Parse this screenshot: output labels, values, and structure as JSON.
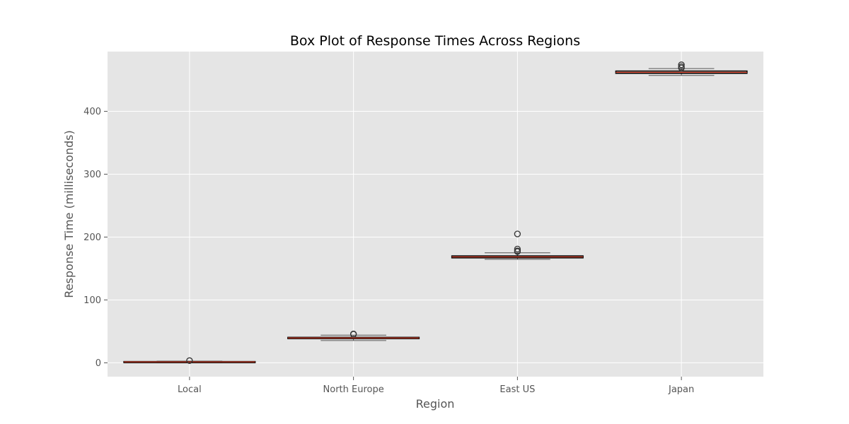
{
  "chart_data": {
    "type": "box",
    "title": "Box Plot of Response Times Across Regions",
    "xlabel": "Region",
    "ylabel": "Response Time (milliseconds)",
    "ylim": [
      -22,
      495
    ],
    "yticks": [
      0,
      100,
      200,
      300,
      400
    ],
    "grid": true,
    "categories": [
      "Local",
      "North Europe",
      "East US",
      "Japan"
    ],
    "boxes": [
      {
        "category": "Local",
        "whislo": 0.4,
        "q1": 1.0,
        "median": 1.5,
        "q3": 2.0,
        "whishi": 2.6,
        "fliers": [
          3.5
        ]
      },
      {
        "category": "North Europe",
        "whislo": 35.5,
        "q1": 38.5,
        "median": 39.5,
        "q3": 40.5,
        "whishi": 44.0,
        "fliers": [
          46.0,
          45.5
        ]
      },
      {
        "category": "East US",
        "whislo": 164.5,
        "q1": 167.0,
        "median": 168.5,
        "q3": 170.0,
        "whishi": 175.0,
        "fliers": [
          205.0,
          181.0,
          178.0,
          177.0
        ]
      },
      {
        "category": "Japan",
        "whislo": 457.0,
        "q1": 460.5,
        "median": 462.0,
        "q3": 464.0,
        "whishi": 468.0,
        "fliers": [
          474.0,
          471.0,
          469.0
        ]
      }
    ],
    "colors": {
      "background": "#e5e5e5",
      "grid": "#ffffff",
      "box_edge": "#000000",
      "median": "#e24a33",
      "whisker": "#555555",
      "flier": "#333333"
    }
  }
}
